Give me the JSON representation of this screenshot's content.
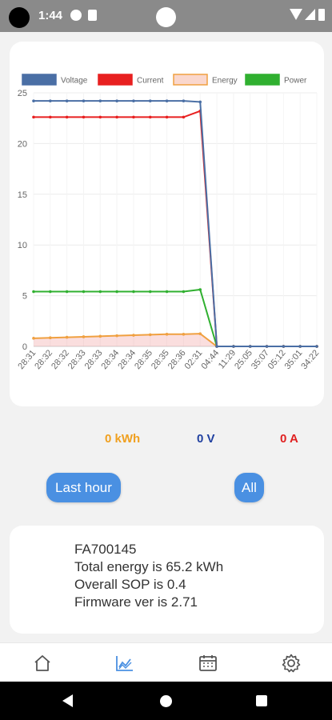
{
  "status_bar": {
    "time": "1:44"
  },
  "chart_data": {
    "type": "line",
    "categories": [
      "28:31",
      "28:32",
      "28:32",
      "28:33",
      "28:33",
      "28:34",
      "28:34",
      "28:35",
      "28:35",
      "28:36",
      "02:31",
      "04:44",
      "11:29",
      "25:05",
      "35:07",
      "05:12",
      "35:01",
      "34:22"
    ],
    "series": [
      {
        "name": "Voltage",
        "color": "#4a6fa5",
        "values": [
          24.2,
          24.2,
          24.2,
          24.2,
          24.2,
          24.2,
          24.2,
          24.2,
          24.2,
          24.2,
          24.1,
          0,
          0,
          0,
          0,
          0,
          0,
          0
        ]
      },
      {
        "name": "Current",
        "color": "#e82020",
        "values": [
          22.6,
          22.6,
          22.6,
          22.6,
          22.6,
          22.6,
          22.6,
          22.6,
          22.6,
          22.6,
          23.2,
          0,
          0,
          0,
          0,
          0,
          0,
          0
        ]
      },
      {
        "name": "Energy",
        "color": "#f0a040",
        "fill": "rgba(240,160,160,0.35)",
        "values": [
          0.8,
          0.85,
          0.9,
          0.95,
          1.0,
          1.05,
          1.1,
          1.15,
          1.2,
          1.2,
          1.25,
          0,
          0,
          0,
          0,
          0,
          0,
          0
        ]
      },
      {
        "name": "Power",
        "color": "#30b030",
        "values": [
          5.4,
          5.4,
          5.4,
          5.4,
          5.4,
          5.4,
          5.4,
          5.4,
          5.4,
          5.4,
          5.6,
          0,
          0,
          0,
          0,
          0,
          0,
          0
        ]
      }
    ],
    "yticks": [
      0,
      5,
      10,
      15,
      20,
      25
    ],
    "ylim": [
      0,
      25
    ],
    "grid": true,
    "legend_position": "top"
  },
  "readings": {
    "energy": "0 kWh",
    "voltage": "0 V",
    "current": "0 A"
  },
  "buttons": {
    "last_hour": "Last hour",
    "all": "All"
  },
  "info": {
    "serial": "FA700145",
    "total_energy": "Total energy is 65.2 kWh",
    "overall_sop": "Overall SOP is  0.4",
    "firmware": "Firmware ver is 2.71"
  },
  "nav": {
    "active_color": "#4a90e2",
    "inactive_color": "#555555",
    "icons": [
      "home-icon",
      "chart-icon",
      "calendar-icon",
      "settings-icon"
    ]
  }
}
